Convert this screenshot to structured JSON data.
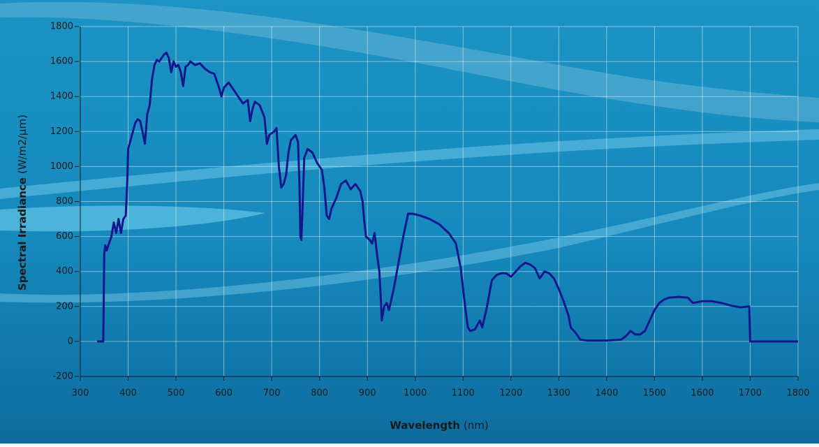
{
  "chart_data": {
    "type": "line",
    "ylabel": "Spectral Irradiance",
    "yunit": "(W/m2/µm)",
    "xlabel": "Wavelength",
    "xunit": "(nm)",
    "color": "#14168c",
    "grid": true,
    "xlim": [
      300,
      1800
    ],
    "xticks": [
      300,
      400,
      500,
      600,
      700,
      800,
      900,
      1000,
      1100,
      1200,
      1300,
      1400,
      1500,
      1600,
      1700,
      1800
    ],
    "ylim": [
      -200,
      1800
    ],
    "yticks": [
      -200,
      0,
      200,
      400,
      600,
      800,
      1000,
      1200,
      1400,
      1600,
      1800
    ],
    "x": [
      335,
      345,
      348,
      350,
      352,
      355,
      360,
      365,
      370,
      375,
      380,
      385,
      390,
      395,
      398,
      400,
      405,
      410,
      415,
      420,
      425,
      430,
      435,
      440,
      445,
      450,
      455,
      460,
      465,
      470,
      475,
      480,
      485,
      490,
      495,
      500,
      505,
      510,
      515,
      520,
      525,
      530,
      540,
      550,
      560,
      570,
      580,
      590,
      595,
      600,
      610,
      620,
      630,
      640,
      650,
      655,
      660,
      665,
      675,
      685,
      690,
      695,
      705,
      710,
      715,
      720,
      725,
      730,
      735,
      740,
      750,
      755,
      758,
      760,
      762,
      765,
      768,
      775,
      785,
      795,
      805,
      810,
      815,
      820,
      825,
      835,
      845,
      855,
      865,
      875,
      885,
      890,
      893,
      897,
      905,
      910,
      915,
      920,
      925,
      928,
      930,
      935,
      940,
      945,
      955,
      965,
      975,
      985,
      995,
      1010,
      1030,
      1050,
      1070,
      1085,
      1095,
      1100,
      1105,
      1110,
      1115,
      1125,
      1135,
      1140,
      1150,
      1160,
      1170,
      1180,
      1190,
      1200,
      1210,
      1220,
      1230,
      1240,
      1250,
      1260,
      1270,
      1280,
      1290,
      1300,
      1310,
      1320,
      1325,
      1335,
      1345,
      1360,
      1400,
      1430,
      1440,
      1450,
      1460,
      1470,
      1480,
      1490,
      1500,
      1510,
      1520,
      1530,
      1550,
      1570,
      1580,
      1600,
      1620,
      1640,
      1660,
      1680,
      1698,
      1700,
      1800
    ],
    "values": [
      0,
      0,
      0,
      500,
      550,
      520,
      560,
      600,
      680,
      620,
      700,
      620,
      700,
      720,
      900,
      1100,
      1150,
      1200,
      1250,
      1270,
      1260,
      1200,
      1130,
      1300,
      1350,
      1500,
      1580,
      1610,
      1600,
      1620,
      1640,
      1650,
      1620,
      1540,
      1600,
      1570,
      1580,
      1540,
      1460,
      1570,
      1580,
      1600,
      1580,
      1590,
      1560,
      1540,
      1530,
      1450,
      1400,
      1450,
      1480,
      1440,
      1400,
      1360,
      1380,
      1260,
      1330,
      1370,
      1350,
      1280,
      1130,
      1180,
      1200,
      1220,
      1000,
      880,
      900,
      950,
      1080,
      1150,
      1180,
      1140,
      900,
      600,
      580,
      800,
      1050,
      1100,
      1080,
      1020,
      980,
      880,
      720,
      700,
      760,
      820,
      900,
      920,
      870,
      900,
      860,
      800,
      700,
      600,
      580,
      560,
      620,
      500,
      400,
      250,
      120,
      200,
      220,
      180,
      300,
      450,
      600,
      730,
      730,
      720,
      700,
      670,
      620,
      560,
      420,
      300,
      180,
      80,
      60,
      70,
      120,
      80,
      200,
      350,
      380,
      390,
      390,
      370,
      400,
      430,
      450,
      440,
      420,
      360,
      400,
      390,
      360,
      300,
      230,
      150,
      80,
      50,
      10,
      5,
      5,
      10,
      30,
      60,
      40,
      40,
      60,
      120,
      180,
      220,
      240,
      250,
      255,
      250,
      220,
      230,
      230,
      220,
      205,
      195,
      200,
      0,
      0
    ]
  }
}
